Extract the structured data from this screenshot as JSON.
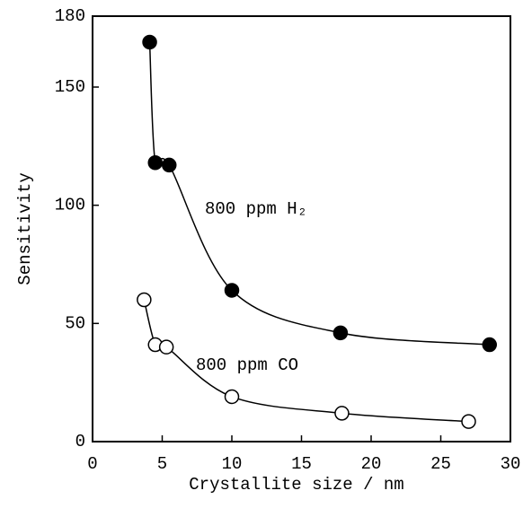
{
  "chart_data": {
    "type": "scatter",
    "xlabel": "Crystallite size / nm",
    "ylabel": "Sensitivity",
    "xlim": [
      0,
      30
    ],
    "xticks": [
      0,
      5,
      10,
      15,
      20,
      25,
      30
    ],
    "ylim": [
      0,
      180
    ],
    "yticks": [
      0,
      50,
      100,
      150,
      180
    ],
    "series": [
      {
        "name": "800 ppm H₂",
        "color": "#000000",
        "marker": "filled",
        "x": [
          4.1,
          4.5,
          5.5,
          10,
          17.8,
          28.5
        ],
        "values": [
          169,
          118,
          117,
          64,
          46,
          41
        ]
      },
      {
        "name": "800 ppm CO",
        "color": "#000000",
        "marker": "open",
        "x": [
          3.7,
          4.5,
          5.3,
          10,
          17.9,
          27
        ],
        "values": [
          60,
          41,
          40,
          19,
          12,
          8.5
        ]
      }
    ]
  }
}
